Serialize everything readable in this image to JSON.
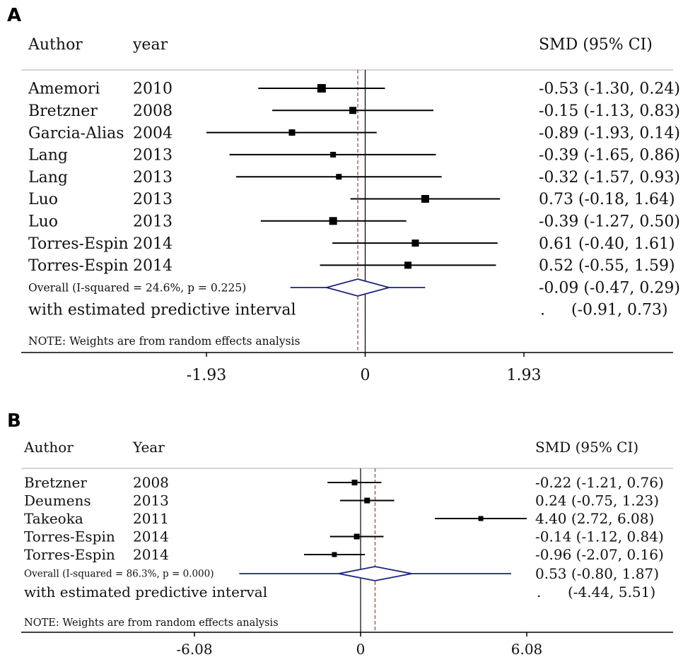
{
  "chart_data": [
    {
      "panel": "A",
      "type": "forest",
      "headers": {
        "author": "Author",
        "year": "year",
        "effect": "SMD (95% CI)"
      },
      "studies": [
        {
          "author": "Amemori",
          "year": "2010",
          "smd": -0.53,
          "lo": -1.3,
          "hi": 0.24,
          "label": "-0.53 (-1.30, 0.24)",
          "size": 12
        },
        {
          "author": "Bretzner",
          "year": "2008",
          "smd": -0.15,
          "lo": -1.13,
          "hi": 0.83,
          "label": "-0.15 (-1.13, 0.83)",
          "size": 10
        },
        {
          "author": "Garcia-Alias",
          "year": "2004",
          "smd": -0.89,
          "lo": -1.93,
          "hi": 0.14,
          "label": "-0.89 (-1.93, 0.14)",
          "size": 9
        },
        {
          "author": "Lang",
          "year": "2013",
          "smd": -0.39,
          "lo": -1.65,
          "hi": 0.86,
          "label": "-0.39 (-1.65, 0.86)",
          "size": 8
        },
        {
          "author": "Lang",
          "year": "2013",
          "smd": -0.32,
          "lo": -1.57,
          "hi": 0.93,
          "label": "-0.32 (-1.57, 0.93)",
          "size": 8
        },
        {
          "author": "Luo",
          "year": "2013",
          "smd": 0.73,
          "lo": -0.18,
          "hi": 1.64,
          "label": "0.73 (-0.18, 1.64)",
          "size": 11
        },
        {
          "author": "Luo",
          "year": "2013",
          "smd": -0.39,
          "lo": -1.27,
          "hi": 0.5,
          "label": "-0.39 (-1.27, 0.50)",
          "size": 11
        },
        {
          "author": "Torres-Espin",
          "year": "2014",
          "smd": 0.61,
          "lo": -0.4,
          "hi": 1.61,
          "label": "0.61 (-0.40, 1.61)",
          "size": 10
        },
        {
          "author": "Torres-Espin",
          "year": "2014",
          "smd": 0.52,
          "lo": -0.55,
          "hi": 1.59,
          "label": "0.52 (-0.55, 1.59)",
          "size": 10
        }
      ],
      "overall": {
        "text": "Overall  (I-squared = 24.6%, p = 0.225)",
        "smd": -0.09,
        "lo": -0.47,
        "hi": 0.29,
        "pi_lo": -0.91,
        "pi_hi": 0.73,
        "label": "-0.09 (-0.47, 0.29)"
      },
      "predictive": {
        "text": "with estimated predictive interval",
        "dot": ".",
        "label": "(-0.91, 0.73)"
      },
      "note": "NOTE: Weights are from random effects analysis",
      "x_ticks": [
        {
          "value": -1.93,
          "label": "-1.93"
        },
        {
          "value": 0,
          "label": "0"
        },
        {
          "value": 1.93,
          "label": "1.93"
        }
      ],
      "xlim": [
        -1.93,
        1.93
      ]
    },
    {
      "panel": "B",
      "type": "forest",
      "headers": {
        "author": "Author",
        "year": "Year",
        "effect": "SMD (95% CI)"
      },
      "studies": [
        {
          "author": "Bretzner",
          "year": "2008",
          "smd": -0.22,
          "lo": -1.21,
          "hi": 0.76,
          "label": "-0.22 (-1.21, 0.76)",
          "size": 8
        },
        {
          "author": "Deumens",
          "year": "2013",
          "smd": 0.24,
          "lo": -0.75,
          "hi": 1.23,
          "label": "0.24 (-0.75, 1.23)",
          "size": 8
        },
        {
          "author": "Takeoka",
          "year": "2011",
          "smd": 4.4,
          "lo": 2.72,
          "hi": 6.08,
          "label": "4.40 (2.72, 6.08)",
          "size": 7
        },
        {
          "author": "Torres-Espin",
          "year": "2014",
          "smd": -0.14,
          "lo": -1.12,
          "hi": 0.84,
          "label": "-0.14 (-1.12, 0.84)",
          "size": 8
        },
        {
          "author": "Torres-Espin",
          "year": "2014",
          "smd": -0.96,
          "lo": -2.07,
          "hi": 0.16,
          "label": "-0.96 (-2.07, 0.16)",
          "size": 7
        }
      ],
      "overall": {
        "text": "Overall  (I-squared = 86.3%, p = 0.000)",
        "smd": 0.53,
        "lo": -0.8,
        "hi": 1.87,
        "pi_lo": -4.44,
        "pi_hi": 5.51,
        "label": "0.53 (-0.80, 1.87)"
      },
      "predictive": {
        "text": "with estimated predictive interval",
        "dot": ".",
        "label": "(-4.44, 5.51)"
      },
      "note": "NOTE: Weights are from random effects analysis",
      "x_ticks": [
        {
          "value": -6.08,
          "label": "-6.08"
        },
        {
          "value": 0,
          "label": "0"
        },
        {
          "value": 6.08,
          "label": "6.08"
        }
      ],
      "xlim": [
        -6.08,
        6.08
      ]
    }
  ],
  "colors": {
    "marker": "#000000",
    "line": "#000000",
    "diamond": "#1a237e",
    "null_line": "#000000",
    "overall_line": "#a33a3a",
    "rule": "#bbbbbb"
  }
}
